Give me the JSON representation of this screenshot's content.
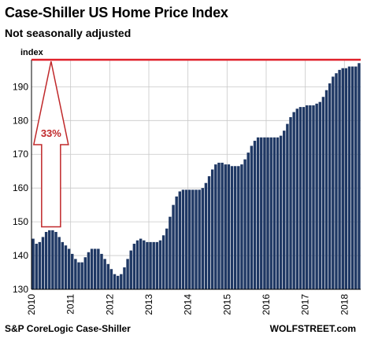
{
  "header": {
    "title": "Case-Shiller US Home Price Index",
    "subtitle": "Not seasonally adjusted"
  },
  "footer": {
    "source": "S&P CoreLogic Case-Shiller",
    "brand": "WOLFSTREET.com"
  },
  "colors": {
    "bar": "#1f3864",
    "line": "#e0202a",
    "arrow": "#c0282a",
    "grid": "#c8c8c8"
  },
  "chart_data": {
    "type": "bar",
    "ylabel": "index",
    "ylim": [
      130,
      198
    ],
    "yticks": [
      130,
      140,
      150,
      160,
      170,
      180,
      190
    ],
    "xticks": [
      "2010",
      "2011",
      "2012",
      "2013",
      "2014",
      "2015",
      "2016",
      "2017",
      "2018"
    ],
    "grid": true,
    "start": "2010-01",
    "frequency": "monthly",
    "values": [
      145.0,
      143.5,
      144.0,
      145.5,
      147.0,
      147.5,
      147.5,
      147.0,
      145.5,
      144.0,
      143.0,
      142.0,
      140.5,
      139.0,
      138.0,
      138.0,
      139.5,
      141.0,
      142.0,
      142.0,
      142.0,
      140.5,
      139.0,
      137.5,
      136.0,
      134.5,
      134.0,
      134.5,
      136.5,
      139.0,
      141.5,
      143.5,
      144.5,
      145.0,
      144.5,
      144.0,
      144.0,
      144.0,
      144.0,
      144.5,
      146.0,
      148.0,
      151.5,
      155.0,
      157.5,
      159.0,
      159.5,
      159.5,
      159.5,
      159.5,
      159.5,
      159.5,
      160.0,
      161.5,
      163.5,
      165.5,
      167.0,
      167.5,
      167.5,
      167.0,
      167.0,
      166.5,
      166.5,
      166.5,
      167.0,
      168.5,
      170.5,
      172.5,
      174.0,
      175.0,
      175.0,
      175.0,
      175.0,
      175.0,
      175.0,
      175.0,
      175.5,
      177.0,
      179.0,
      181.0,
      182.5,
      183.5,
      184.0,
      184.0,
      184.5,
      184.5,
      184.5,
      185.0,
      185.5,
      187.0,
      189.0,
      191.0,
      193.0,
      194.0,
      195.0,
      195.5,
      195.5,
      196.0,
      196.0,
      196.0,
      197.0
    ],
    "peak_line": 198,
    "annotation": "33%"
  }
}
